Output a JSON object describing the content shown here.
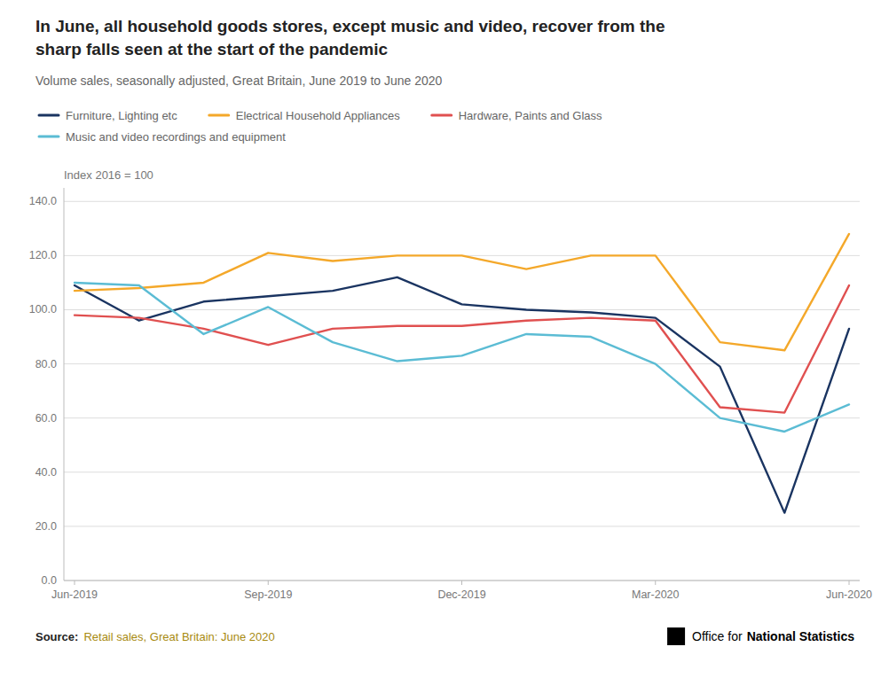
{
  "chart_data": {
    "type": "line",
    "title": [
      "In June, all household goods stores, except music and video, recover from the",
      "sharp falls seen at the start of the pandemic"
    ],
    "subtitle": "Volume sales, seasonally adjusted, Great Britain, June 2019 to June 2020",
    "y_label": "Index 2016 = 100",
    "source_label": "Source:",
    "source_text": "Retail sales, Great Britain: June 2020",
    "credit": [
      "Office for",
      "National Statistics"
    ],
    "categories": [
      "Jun-2019",
      null,
      null,
      "Sep-2019",
      null,
      null,
      "Dec-2019",
      null,
      null,
      "Mar-2020",
      null,
      null,
      "Jun-2020"
    ],
    "series": [
      {
        "name": "Furniture, Lighting etc",
        "color": "#1a3461",
        "values": [
          109,
          96,
          103,
          105,
          107,
          112,
          102,
          100,
          99,
          97,
          79,
          25,
          93
        ]
      },
      {
        "name": "Electrical Household Appliances",
        "color": "#f4a82a",
        "values": [
          107,
          108,
          110,
          121,
          118,
          120,
          120,
          115,
          120,
          120,
          88,
          85,
          128
        ]
      },
      {
        "name": "Hardware, Paints and Glass",
        "color": "#e05050",
        "values": [
          98,
          97,
          93,
          87,
          93,
          94,
          94,
          96,
          97,
          96,
          64,
          62,
          109
        ]
      },
      {
        "name": "Music and video recordings and equipment",
        "color": "#5bbcd4",
        "values": [
          110,
          109,
          91,
          101,
          88,
          81,
          83,
          91,
          90,
          80,
          60,
          55,
          65
        ]
      }
    ],
    "ylim": [
      0,
      145
    ],
    "yticks": [
      {
        "value": 0,
        "label": "0.0"
      },
      {
        "value": 20,
        "label": "20.0"
      },
      {
        "value": 40,
        "label": "40.0"
      },
      {
        "value": 60,
        "label": "60.0"
      },
      {
        "value": 80,
        "label": "80.0"
      },
      {
        "value": 100,
        "label": "100.0"
      },
      {
        "value": 120,
        "label": "120.0"
      },
      {
        "value": 140,
        "label": "140.0"
      }
    ],
    "grid": true,
    "legend": "top left"
  }
}
